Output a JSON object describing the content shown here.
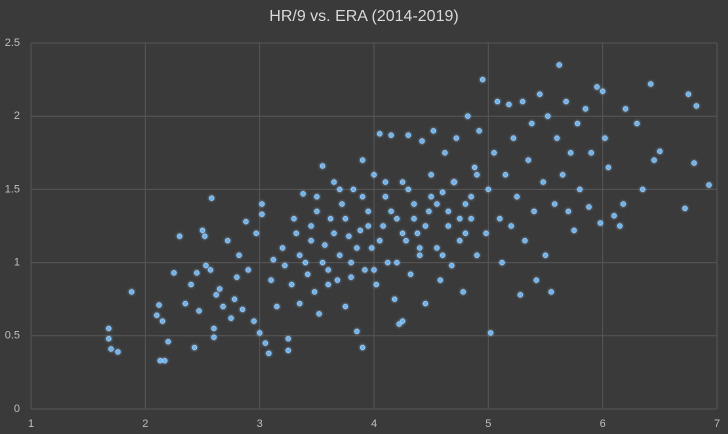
{
  "chart_data": {
    "type": "scatter",
    "title": "HR/9 vs. ERA (2014-2019)",
    "color": "#6cb4f0",
    "grid": true,
    "xlim": [
      1,
      7
    ],
    "xticks": [
      1,
      2,
      3,
      4,
      5,
      6,
      7
    ],
    "ylim": [
      0,
      2.5
    ],
    "yticks": [
      0,
      0.5,
      1,
      1.5,
      2,
      2.5
    ],
    "x": [
      1.68,
      1.68,
      1.7,
      1.76,
      1.88,
      2.1,
      2.12,
      2.13,
      2.17,
      2.15,
      2.2,
      2.25,
      2.3,
      2.35,
      2.4,
      2.43,
      2.45,
      2.47,
      2.5,
      2.52,
      2.53,
      2.57,
      2.58,
      2.6,
      2.6,
      2.62,
      2.65,
      2.68,
      2.72,
      2.75,
      2.78,
      2.8,
      2.82,
      2.85,
      2.88,
      2.9,
      2.95,
      2.97,
      3.0,
      3.02,
      3.02,
      3.05,
      3.08,
      3.1,
      3.12,
      3.15,
      3.2,
      3.22,
      3.25,
      3.25,
      3.28,
      3.3,
      3.32,
      3.35,
      3.38,
      3.4,
      3.42,
      3.45,
      3.48,
      3.5,
      3.52,
      3.55,
      3.57,
      3.6,
      3.62,
      3.65,
      3.68,
      3.7,
      3.72,
      3.75,
      3.78,
      3.8,
      3.82,
      3.85,
      3.88,
      3.9,
      3.9,
      3.92,
      3.95,
      3.98,
      4.0,
      4.02,
      4.05,
      4.08,
      4.1,
      4.12,
      4.15,
      4.18,
      4.2,
      4.22,
      4.25,
      4.25,
      4.28,
      4.3,
      4.32,
      4.35,
      4.38,
      4.4,
      4.42,
      4.45,
      4.48,
      4.5,
      4.52,
      4.55,
      4.58,
      4.6,
      4.62,
      4.65,
      4.68,
      4.7,
      4.72,
      4.75,
      4.78,
      4.8,
      4.82,
      4.85,
      4.88,
      4.9,
      4.92,
      4.95,
      4.98,
      5.0,
      5.02,
      5.05,
      5.08,
      5.1,
      5.12,
      5.15,
      5.18,
      5.2,
      5.22,
      5.25,
      5.28,
      5.3,
      5.32,
      5.35,
      5.38,
      5.4,
      5.42,
      5.45,
      5.48,
      5.5,
      5.52,
      5.55,
      5.58,
      5.6,
      5.62,
      5.65,
      5.68,
      5.7,
      5.72,
      5.75,
      5.78,
      5.8,
      5.85,
      5.88,
      5.9,
      5.95,
      5.98,
      6.0,
      6.02,
      6.05,
      6.1,
      6.15,
      6.18,
      6.2,
      6.3,
      6.35,
      6.42,
      6.45,
      6.5,
      6.72,
      6.75,
      6.8,
      6.82,
      6.93,
      3.35,
      3.45,
      3.55,
      3.65,
      3.75,
      3.85,
      3.95,
      4.05,
      4.15,
      4.25,
      4.35,
      4.45,
      4.55,
      4.65,
      4.75,
      4.85,
      3.6,
      3.8,
      4.0,
      4.2,
      4.4,
      4.6,
      4.8,
      3.5,
      3.7,
      3.9,
      4.1,
      4.3,
      4.5,
      4.7,
      4.9
    ],
    "values": [
      0.55,
      0.48,
      0.41,
      0.39,
      0.8,
      0.64,
      0.71,
      0.33,
      0.33,
      0.6,
      0.46,
      0.93,
      1.18,
      0.72,
      0.85,
      0.42,
      0.93,
      0.67,
      1.22,
      1.18,
      0.98,
      0.95,
      1.44,
      0.55,
      0.49,
      0.78,
      0.82,
      0.7,
      1.15,
      0.62,
      0.75,
      0.9,
      1.05,
      0.68,
      1.28,
      0.95,
      0.6,
      1.2,
      0.52,
      1.4,
      1.33,
      0.45,
      0.38,
      0.88,
      1.02,
      0.7,
      1.1,
      0.98,
      0.48,
      0.4,
      0.85,
      1.3,
      1.2,
      0.72,
      1.47,
      1.0,
      0.92,
      1.25,
      0.8,
      1.35,
      0.65,
      1.66,
      1.12,
      0.95,
      1.3,
      1.55,
      0.88,
      1.05,
      1.4,
      0.7,
      1.18,
      1.0,
      1.5,
      0.53,
      1.22,
      0.42,
      1.7,
      0.95,
      1.35,
      1.1,
      1.6,
      0.85,
      1.88,
      1.25,
      1.45,
      1.0,
      1.87,
      0.75,
      1.3,
      0.58,
      0.6,
      1.55,
      1.15,
      1.87,
      0.92,
      1.4,
      1.2,
      1.05,
      1.83,
      0.72,
      1.35,
      1.6,
      1.9,
      1.1,
      0.88,
      1.48,
      1.75,
      1.25,
      0.98,
      1.55,
      1.85,
      1.15,
      0.8,
      1.4,
      2.0,
      1.3,
      1.65,
      1.05,
      1.9,
      2.25,
      1.2,
      1.5,
      0.52,
      1.75,
      2.1,
      1.3,
      1.0,
      1.6,
      2.08,
      1.25,
      1.85,
      1.45,
      0.78,
      2.1,
      1.15,
      1.7,
      1.95,
      1.35,
      0.88,
      2.15,
      1.55,
      1.05,
      2.0,
      0.8,
      1.4,
      1.85,
      2.35,
      1.6,
      2.1,
      1.35,
      1.75,
      1.22,
      1.95,
      1.5,
      2.05,
      1.38,
      1.75,
      2.2,
      1.27,
      2.17,
      1.85,
      1.65,
      1.32,
      1.25,
      1.4,
      2.05,
      1.95,
      1.5,
      2.22,
      1.7,
      1.76,
      1.37,
      2.15,
      1.68,
      2.07,
      1.53,
      1.05,
      1.15,
      1.0,
      1.2,
      1.3,
      1.1,
      1.25,
      1.15,
      1.35,
      1.2,
      1.3,
      1.25,
      1.4,
      1.35,
      1.3,
      1.45,
      0.85,
      0.9,
      0.95,
      1.0,
      1.1,
      1.05,
      1.2,
      1.45,
      1.5,
      1.45,
      1.55,
      1.5,
      1.45,
      1.55,
      1.6
    ]
  }
}
